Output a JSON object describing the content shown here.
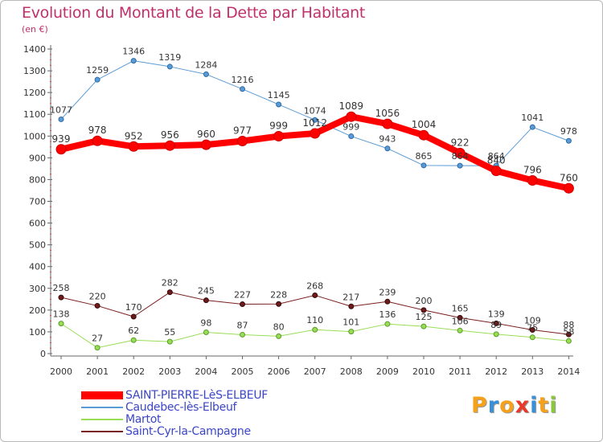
{
  "header": {
    "title": "Evolution du Montant de la Dette par Habitant",
    "unit": "(en €)"
  },
  "logo": {
    "text": "Proxiti",
    "colors": [
      "#f5a11c",
      "#3a8fd9",
      "#f5a11c",
      "#e8392b",
      "#3a8fd9",
      "#f5a11c",
      "#8cc63f"
    ]
  },
  "chart_data": {
    "type": "line",
    "title": "Evolution du Montant de la Dette par Habitant",
    "ylabel": "(en €)",
    "xlabel": "",
    "x": [
      "2000",
      "2001",
      "2002",
      "2003",
      "2004",
      "2005",
      "2006",
      "2007",
      "2008",
      "2009",
      "2010",
      "2011",
      "2012",
      "2013",
      "2014"
    ],
    "ylim": [
      0,
      1400
    ],
    "yticks": [
      0,
      100,
      200,
      300,
      400,
      500,
      600,
      700,
      800,
      900,
      1000,
      1100,
      1200,
      1300,
      1400
    ],
    "grid": false,
    "legend_position": "bottom-left",
    "series": [
      {
        "name": "SAINT-PIERRE-LèS-ELBEUF",
        "color": "#ff0000",
        "values": [
          939,
          978,
          952,
          956,
          960,
          977,
          999,
          1012,
          1089,
          1056,
          1004,
          922,
          840,
          796,
          760
        ]
      },
      {
        "name": "Caudebec-lès-Elbeuf",
        "color": "#5b9bd5",
        "values": [
          1077,
          1259,
          1346,
          1319,
          1284,
          1216,
          1145,
          1074,
          999,
          943,
          865,
          864,
          864,
          1041,
          978
        ]
      },
      {
        "name": "Martot",
        "color": "#99dd55",
        "values": [
          138,
          27,
          62,
          55,
          98,
          87,
          80,
          110,
          101,
          136,
          125,
          106,
          89,
          75,
          58
        ]
      },
      {
        "name": "Saint-Cyr-la-Campagne",
        "color": "#7a1f1f",
        "values": [
          258,
          220,
          170,
          282,
          245,
          227,
          228,
          268,
          217,
          239,
          200,
          165,
          139,
          109,
          88
        ]
      }
    ]
  }
}
